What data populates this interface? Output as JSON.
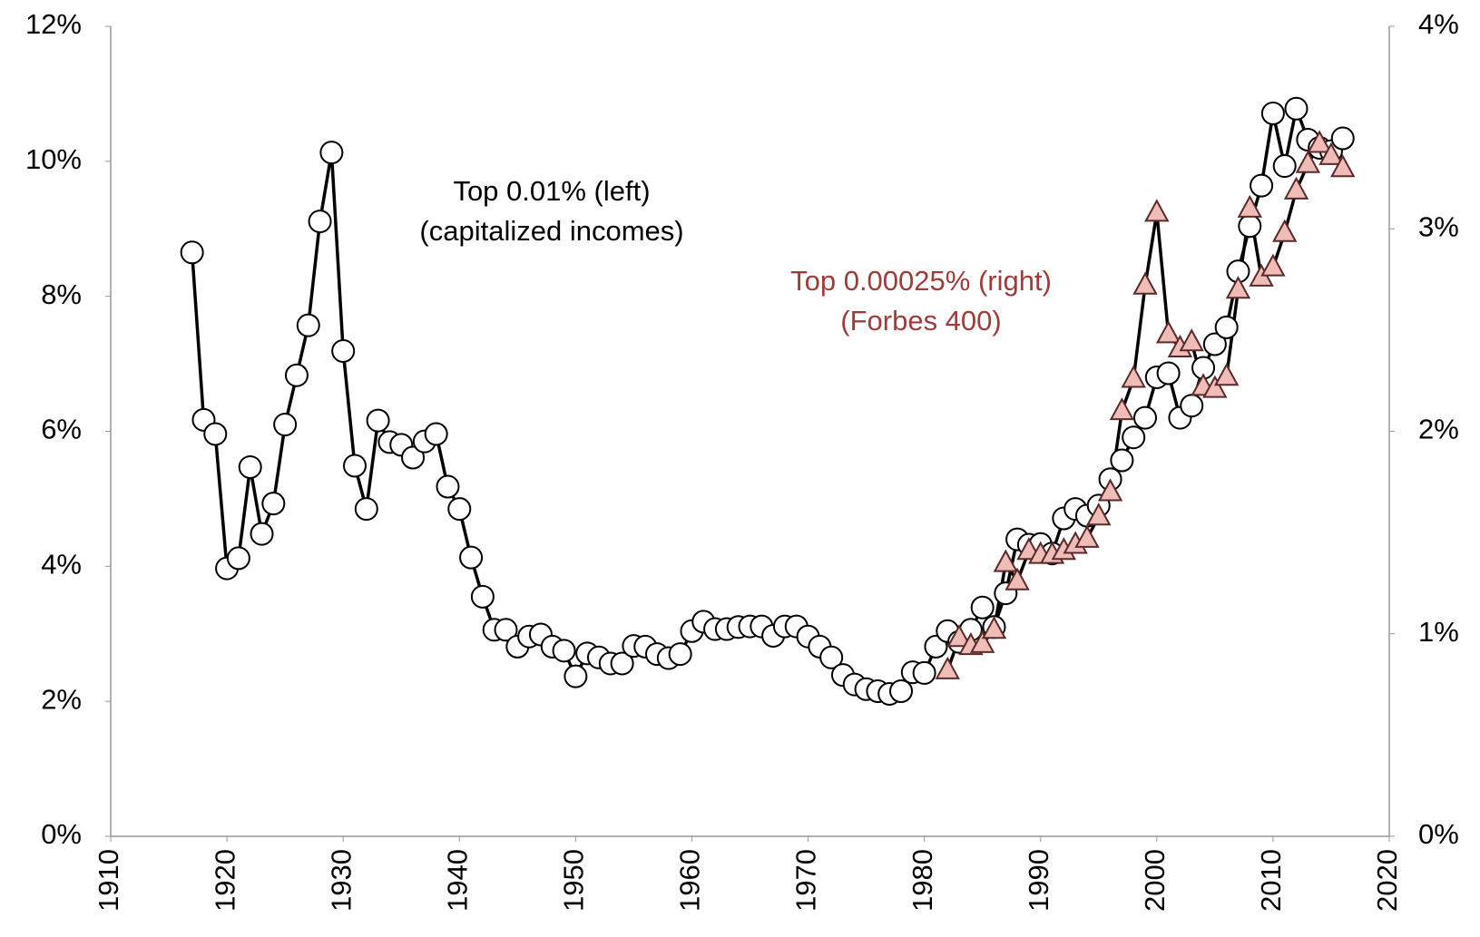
{
  "chart_data": {
    "type": "line",
    "xlim": [
      1910,
      2020
    ],
    "xticks": [
      1910,
      1920,
      1930,
      1940,
      1950,
      1960,
      1970,
      1980,
      1990,
      2000,
      2010,
      2020
    ],
    "ylim": [
      0,
      12
    ],
    "yticks": [
      {
        "value": 0,
        "label": "0%"
      },
      {
        "value": 2,
        "label": "2%"
      },
      {
        "value": 4,
        "label": "4%"
      },
      {
        "value": 6,
        "label": "6%"
      },
      {
        "value": 8,
        "label": "8%"
      },
      {
        "value": 10,
        "label": "10%"
      },
      {
        "value": 12,
        "label": "12%"
      }
    ],
    "y2lim": [
      0,
      4
    ],
    "y2ticks": [
      {
        "value": 0,
        "label": "0%"
      },
      {
        "value": 1,
        "label": "1%"
      },
      {
        "value": 2,
        "label": "2%"
      },
      {
        "value": 3,
        "label": "3%"
      },
      {
        "value": 4,
        "label": "4%"
      }
    ],
    "grid": false,
    "series": [
      {
        "name": "Top 0.01% (left)",
        "description": "(capitalized incomes)",
        "color": "#000000",
        "marker": "circle",
        "marker_fill": "#ffffff",
        "x": [
          1917,
          1918,
          1919,
          1920,
          1921,
          1922,
          1923,
          1924,
          1925,
          1926,
          1927,
          1928,
          1929,
          1930,
          1931,
          1932,
          1933,
          1934,
          1935,
          1936,
          1937,
          1938,
          1939,
          1940,
          1941,
          1942,
          1943,
          1944,
          1945,
          1946,
          1947,
          1948,
          1949,
          1950,
          1951,
          1952,
          1953,
          1954,
          1955,
          1956,
          1957,
          1958,
          1959,
          1960,
          1961,
          1962,
          1963,
          1964,
          1965,
          1966,
          1967,
          1968,
          1969,
          1970,
          1971,
          1972,
          1973,
          1974,
          1975,
          1976,
          1977,
          1978,
          1979,
          1980,
          1981,
          1982,
          1983,
          1984,
          1985,
          1986,
          1987,
          1988,
          1989,
          1990,
          1991,
          1992,
          1993,
          1994,
          1995,
          1996,
          1997,
          1998,
          1999,
          2000,
          2001,
          2002,
          2003,
          2004,
          2005,
          2006,
          2007,
          2008,
          2009,
          2010,
          2011,
          2012,
          2013,
          2014,
          2015,
          2016
        ],
        "values": [
          8.65,
          6.17,
          5.96,
          3.97,
          4.12,
          5.47,
          4.48,
          4.93,
          6.1,
          6.83,
          7.57,
          9.11,
          10.13,
          7.19,
          5.49,
          4.85,
          6.16,
          5.84,
          5.8,
          5.61,
          5.85,
          5.96,
          5.18,
          4.85,
          4.13,
          3.55,
          3.06,
          3.06,
          2.81,
          2.96,
          2.99,
          2.81,
          2.75,
          2.37,
          2.71,
          2.65,
          2.56,
          2.56,
          2.82,
          2.81,
          2.7,
          2.64,
          2.7,
          3.04,
          3.18,
          3.07,
          3.07,
          3.1,
          3.11,
          3.11,
          2.97,
          3.11,
          3.11,
          2.96,
          2.81,
          2.65,
          2.39,
          2.25,
          2.18,
          2.15,
          2.11,
          2.15,
          2.43,
          2.42,
          2.81,
          3.04,
          2.88,
          3.06,
          3.39,
          3.1,
          3.6,
          4.4,
          4.32,
          4.33,
          4.19,
          4.71,
          4.85,
          4.75,
          4.9,
          5.29,
          5.57,
          5.91,
          6.2,
          6.8,
          6.86,
          6.2,
          6.38,
          6.94,
          7.29,
          7.54,
          8.37,
          9.04,
          9.64,
          10.71,
          9.93,
          10.78,
          10.32,
          10.2,
          10.15,
          10.34
        ]
      },
      {
        "name": "Top 0.00025% (right)",
        "description": "(Forbes 400)",
        "color": "#000000",
        "marker": "triangle",
        "marker_fill": "#f0bcb8",
        "label_color": "#9e3b3b",
        "axis": "y2",
        "x": [
          1982,
          1983,
          1984,
          1985,
          1986,
          1987,
          1988,
          1989,
          1990,
          1991,
          1992,
          1993,
          1994,
          1995,
          1996,
          1997,
          1998,
          1999,
          2000,
          2001,
          2002,
          2003,
          2004,
          2005,
          2006,
          2007,
          2008,
          2009,
          2010,
          2011,
          2012,
          2013,
          2014,
          2015,
          2016
        ],
        "values": [
          0.82,
          0.98,
          0.94,
          0.95,
          1.02,
          1.35,
          1.26,
          1.41,
          1.39,
          1.39,
          1.41,
          1.44,
          1.47,
          1.58,
          1.7,
          2.1,
          2.26,
          2.72,
          3.08,
          2.48,
          2.41,
          2.44,
          2.22,
          2.21,
          2.27,
          2.7,
          3.1,
          2.76,
          2.81,
          2.98,
          3.19,
          3.32,
          3.42,
          3.36,
          3.3
        ]
      }
    ]
  }
}
